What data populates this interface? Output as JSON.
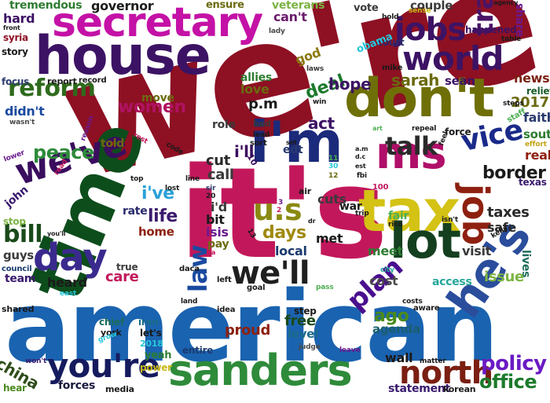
{
  "words": [
    {
      "text": "we're",
      "color": "#8e1023"
    },
    {
      "text": "american",
      "color": "#1a63b0"
    },
    {
      "text": "it's",
      "color": "#c2185b"
    },
    {
      "text": "time",
      "color": "#0d4d1c"
    },
    {
      "text": "house",
      "color": "#3c1364"
    },
    {
      "text": "secretary",
      "color": "#c411a6"
    },
    {
      "text": "don't",
      "color": "#6f6f08"
    },
    {
      "text": "sanders",
      "color": "#2e8b3a"
    },
    {
      "text": "tax",
      "color": "#d4c214"
    },
    {
      "text": "i'm",
      "color": "#1b2a7a"
    },
    {
      "text": "ms",
      "color": "#b00f69"
    },
    {
      "text": "world",
      "color": "#3c1364"
    },
    {
      "text": "jobs",
      "color": "#3c1364"
    },
    {
      "text": "trade",
      "color": "#4a1467"
    },
    {
      "text": "he's",
      "color": "#2a4d9c"
    },
    {
      "text": "lot",
      "color": "#15401f"
    },
    {
      "text": "you're",
      "color": "#161b5e"
    },
    {
      "text": "we've",
      "color": "#3a0d5e"
    },
    {
      "text": "day",
      "color": "#3b2a8e"
    },
    {
      "text": "we'll",
      "color": "#1f1f1f"
    },
    {
      "text": "north",
      "color": "#7a1f12"
    },
    {
      "text": "job",
      "color": "#8e2010"
    },
    {
      "text": "vice",
      "color": "#1a2a8a"
    },
    {
      "text": "u.s",
      "color": "#8a8a12"
    },
    {
      "text": "reform",
      "color": "#2e6b1c"
    },
    {
      "text": "plan",
      "color": "#4a0f8e"
    },
    {
      "text": "policy",
      "color": "#6a1ac4"
    },
    {
      "text": "office",
      "color": "#1c7a2c"
    },
    {
      "text": "bill",
      "color": "#1a4a1a"
    },
    {
      "text": "talk",
      "color": "#2a2a2a"
    },
    {
      "text": "law",
      "color": "#1a4aa0"
    },
    {
      "text": "women",
      "color": "#b01261"
    },
    {
      "text": "days",
      "color": "#a08a10"
    },
    {
      "text": "china",
      "color": "#2f4d1a"
    },
    {
      "text": "peace",
      "color": "#2e8b3a"
    },
    {
      "text": "border",
      "color": "#1a1a1a"
    },
    {
      "text": "act",
      "color": "#3c1364"
    },
    {
      "text": "deal",
      "color": "#1c7a2c"
    },
    {
      "text": "hope",
      "color": "#3c1364"
    },
    {
      "text": "sarah",
      "color": "#6a6a10"
    },
    {
      "text": "life",
      "color": "#3b1a6e"
    },
    {
      "text": "governor",
      "color": "#1c1c1c"
    },
    {
      "text": "tremendous",
      "color": "#2e7d32"
    },
    {
      "text": "hard",
      "color": "#3c1364"
    },
    {
      "text": "can't",
      "color": "#6b1a6b"
    },
    {
      "text": "veterans",
      "color": "#7cb342"
    },
    {
      "text": "couple",
      "color": "#3a3a3a"
    },
    {
      "text": "ensure",
      "color": "#6b6b10"
    },
    {
      "text": "vote",
      "color": "#3a3a3a"
    },
    {
      "text": "share",
      "color": "#6a1a8e"
    },
    {
      "text": "happened",
      "color": "#3c1364"
    },
    {
      "text": "court",
      "color": "#2a2a6e"
    },
    {
      "text": "obama",
      "color": "#26c6da"
    },
    {
      "text": "god",
      "color": "#8a7a10"
    },
    {
      "text": "love",
      "color": "#6b6b10"
    },
    {
      "text": "allies",
      "color": "#2e7d32"
    },
    {
      "text": "p.m",
      "color": "#1a1a1a"
    },
    {
      "text": "sean",
      "color": "#3c1364"
    },
    {
      "text": "news",
      "color": "#7a1f12"
    },
    {
      "text": "relief",
      "color": "#1c5e2c"
    },
    {
      "text": "2017",
      "color": "#6a6a10"
    },
    {
      "text": "faith",
      "color": "#2a3a6e"
    },
    {
      "text": "south",
      "color": "#2e7d32"
    },
    {
      "text": "real",
      "color": "#8e2010"
    },
    {
      "text": "texas",
      "color": "#3a1a6e"
    },
    {
      "text": "taxes",
      "color": "#2a2a2a"
    },
    {
      "text": "safe",
      "color": "#2a2a2a"
    },
    {
      "text": "lives",
      "color": "#1a6b5a"
    },
    {
      "text": "issue",
      "color": "#7cb342"
    },
    {
      "text": "visit",
      "color": "#3a3a3a"
    },
    {
      "text": "meet",
      "color": "#2e7d32"
    },
    {
      "text": "cost",
      "color": "#4a4a4a"
    },
    {
      "text": "access",
      "color": "#26a69a"
    },
    {
      "text": "fair",
      "color": "#4caf50"
    },
    {
      "text": "cuts",
      "color": "#3a3a3a"
    },
    {
      "text": "met",
      "color": "#1a1a1a"
    },
    {
      "text": "war",
      "color": "#1a1a1a"
    },
    {
      "text": "call",
      "color": "#3a3a3a"
    },
    {
      "text": "cut",
      "color": "#2a2a2a"
    },
    {
      "text": "i've",
      "color": "#2aa1d8"
    },
    {
      "text": "i'll",
      "color": "#3a0d5e"
    },
    {
      "text": "i'd",
      "color": "#3a3a3a"
    },
    {
      "text": "bit",
      "color": "#1a1a1a"
    },
    {
      "text": "isis",
      "color": "#6a1a8e"
    },
    {
      "text": "pay",
      "color": "#6b6b10"
    },
    {
      "text": "local",
      "color": "#1a3a6e"
    },
    {
      "text": "care",
      "color": "#c2185b"
    },
    {
      "text": "heard",
      "color": "#1a1a1a"
    },
    {
      "text": "team",
      "color": "#3a1a6e"
    },
    {
      "text": "guys",
      "color": "#3a3a3a"
    },
    {
      "text": "home",
      "color": "#8e2010"
    },
    {
      "text": "rate",
      "color": "#2a2a6e"
    },
    {
      "text": "john",
      "color": "#3a1a6e"
    },
    {
      "text": "stop",
      "color": "#7cb342"
    },
    {
      "text": "told",
      "color": "#6b6b10"
    },
    {
      "text": "move",
      "color": "#6b6b10"
    },
    {
      "text": "role",
      "color": "#3a3a3a"
    },
    {
      "text": "didn't",
      "color": "#1a4aa0"
    },
    {
      "text": "focus",
      "color": "#2a3a6e"
    },
    {
      "text": "story",
      "color": "#1a1a1a"
    },
    {
      "text": "syria",
      "color": "#8e1023"
    },
    {
      "text": "report",
      "color": "#1a1a1a"
    },
    {
      "text": "record",
      "color": "#1a1a1a"
    },
    {
      "text": "ago",
      "color": "#4a8a1c"
    },
    {
      "text": "free",
      "color": "#1a4a1a"
    },
    {
      "text": "level",
      "color": "#1a6b8a"
    },
    {
      "text": "proud",
      "color": "#8e2010"
    },
    {
      "text": "step",
      "color": "#1a1a1a"
    },
    {
      "text": "agenda",
      "color": "#1a5e6e"
    },
    {
      "text": "wall",
      "color": "#1a1a1a"
    },
    {
      "text": "statement",
      "color": "#3a1a6e"
    },
    {
      "text": "forces",
      "color": "#1a1a3e"
    },
    {
      "text": "media",
      "color": "#1a1a1a"
    },
    {
      "text": "yeah",
      "color": "#2e7d32"
    },
    {
      "text": "power",
      "color": "#c8b814"
    },
    {
      "text": "entire",
      "color": "#1a3a6e"
    },
    {
      "text": "chief",
      "color": "#1a6b5a"
    },
    {
      "text": "iran",
      "color": "#1a6b8a"
    },
    {
      "text": "york",
      "color": "#1a1a1a"
    },
    {
      "text": "let's",
      "color": "#1a1a1a"
    },
    {
      "text": "2018",
      "color": "#26c6da"
    },
    {
      "text": "hear",
      "color": "#4a8a1c"
    },
    {
      "text": "won't",
      "color": "#3a1a6e"
    },
    {
      "text": "shared",
      "color": "#1a1a1a"
    },
    {
      "text": "council",
      "color": "#1a3a6e"
    },
    {
      "text": "true",
      "color": "#3a3a3a"
    },
    {
      "text": "idea",
      "color": "#1a1a1a"
    },
    {
      "text": "goal",
      "color": "#1a1a1a"
    },
    {
      "text": "daca",
      "color": "#1a1a1a"
    },
    {
      "text": "left",
      "color": "#1a1a1a"
    },
    {
      "text": "land",
      "color": "#1a1a1a"
    },
    {
      "text": "east",
      "color": "#26c6da"
    },
    {
      "text": "grow",
      "color": "#26c6da"
    },
    {
      "text": "judge",
      "color": "#4a4a4a"
    },
    {
      "text": "leave",
      "color": "#6a1a8e"
    },
    {
      "text": "matter",
      "color": "#1a1a1a"
    },
    {
      "text": "korean",
      "color": "#1a1a1a"
    },
    {
      "text": "aware",
      "color": "#1a1a1a"
    },
    {
      "text": "costs",
      "color": "#1a1a1a"
    },
    {
      "text": "city",
      "color": "#26a69a"
    },
    {
      "text": "pass",
      "color": "#4caf50"
    },
    {
      "text": "rico",
      "color": "#1a1a1a"
    },
    {
      "text": "trip",
      "color": "#1a1a1a"
    },
    {
      "text": "100",
      "color": "#c2185b"
    },
    {
      "text": "isn't",
      "color": "#1a1a1a"
    },
    {
      "text": "kelly",
      "color": "#1a1a1a"
    },
    {
      "text": "air",
      "color": "#1a1a1a"
    },
    {
      "text": "fbi",
      "color": "#1a1a1a"
    },
    {
      "text": "edt",
      "color": "#2a3a6e"
    },
    {
      "text": "set",
      "color": "#1a1a1a"
    },
    {
      "text": "sort",
      "color": "#1a1a1a"
    },
    {
      "text": "lead",
      "color": "#1a1a1a"
    },
    {
      "text": "bad",
      "color": "#3a3a3a"
    },
    {
      "text": "win",
      "color": "#1a1a1a"
    },
    {
      "text": "laws",
      "color": "#3a3a3a"
    },
    {
      "text": "mike",
      "color": "#1a1a1a"
    },
    {
      "text": "lady",
      "color": "#4a4a4a"
    },
    {
      "text": "hold",
      "color": "#1a1a1a"
    },
    {
      "text": "sense",
      "color": "#c8b814"
    },
    {
      "text": "agency",
      "color": "#1a1a1a"
    },
    {
      "text": "table",
      "color": "#1a1a1a"
    },
    {
      "text": "front",
      "color": "#1a1a1a"
    },
    {
      "text": "steps",
      "color": "#1a1a1a"
    },
    {
      "text": "staff",
      "color": "#4caf50"
    },
    {
      "text": "effort",
      "color": "#c2a414"
    },
    {
      "text": "force",
      "color": "#1a1a1a"
    },
    {
      "text": "repeal",
      "color": "#1a1a1a"
    },
    {
      "text": "feel",
      "color": "#1a1a1a"
    },
    {
      "text": "art",
      "color": "#4caf50"
    },
    {
      "text": "reason",
      "color": "#6a1a8e"
    },
    {
      "text": "wasn't",
      "color": "#4a4a4a"
    },
    {
      "text": "rest",
      "color": "#c2185b"
    },
    {
      "text": "code",
      "color": "#1a1a1a"
    },
    {
      "text": "lower",
      "color": "#6a1a8e"
    },
    {
      "text": "read",
      "color": "#c2185b"
    },
    {
      "text": "top",
      "color": "#1a1a1a"
    },
    {
      "text": "lost",
      "color": "#1a1a1a"
    },
    {
      "text": "line",
      "color": "#1a1a1a"
    },
    {
      "text": "sir",
      "color": "#2a3a6e"
    },
    {
      "text": "you'll",
      "color": "#1a1a1a"
    },
    {
      "text": "va",
      "color": "#c2185b"
    },
    {
      "text": "dr",
      "color": "#1a1a1a"
    },
    {
      "text": "10",
      "color": "#3a0d5e"
    },
    {
      "text": "20",
      "color": "#1a1a1a"
    },
    {
      "text": "13",
      "color": "#1a1a1a"
    },
    {
      "text": "11",
      "color": "#4caf50"
    },
    {
      "text": "30",
      "color": "#26c6da"
    },
    {
      "text": "12",
      "color": "#6b6b10"
    },
    {
      "text": "3",
      "color": "#6a1a8e"
    },
    {
      "text": "2",
      "color": "#c2185b"
    },
    {
      "text": "a.m",
      "color": "#1a1a1a"
    },
    {
      "text": "d.c",
      "color": "#1a1a1a"
    },
    {
      "text": "est",
      "color": "#1a1a1a"
    }
  ]
}
